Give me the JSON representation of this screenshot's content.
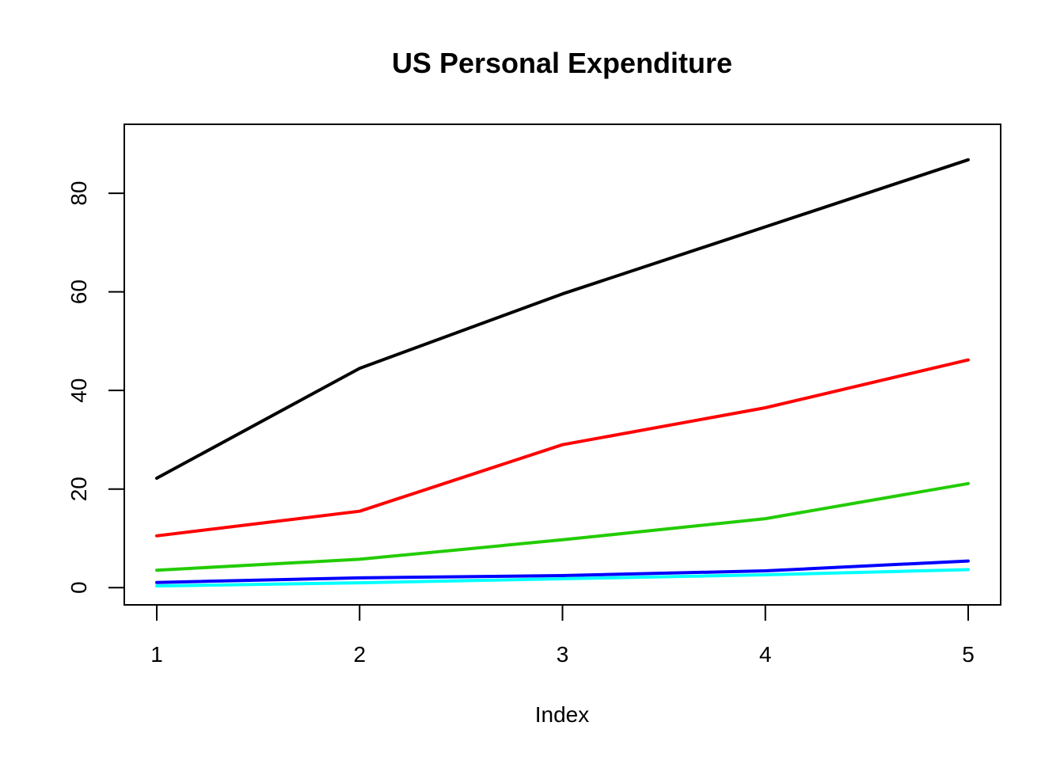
{
  "chart_data": {
    "type": "line",
    "title": "US Personal Expenditure",
    "xlabel": "Index",
    "ylabel": "",
    "x": [
      1,
      2,
      3,
      4,
      5
    ],
    "xlim": [
      0.84,
      5.16
    ],
    "ylim": [
      -3.5,
      94
    ],
    "x_ticks": [
      1,
      2,
      3,
      4,
      5
    ],
    "y_ticks": [
      0,
      20,
      40,
      60,
      80
    ],
    "grid": false,
    "legend": "none",
    "series": [
      {
        "color": "#000000",
        "values": [
          22.2,
          44.5,
          59.6,
          73.2,
          86.8
        ]
      },
      {
        "color": "#ff0000",
        "values": [
          10.5,
          15.5,
          29.0,
          36.5,
          46.2
        ]
      },
      {
        "color": "#22cc00",
        "values": [
          3.53,
          5.76,
          9.71,
          14.0,
          21.1
        ]
      },
      {
        "color": "#0000ff",
        "values": [
          1.04,
          1.98,
          2.45,
          3.4,
          5.4
        ]
      },
      {
        "color": "#00ffff",
        "values": [
          0.341,
          0.974,
          1.8,
          2.6,
          3.64
        ]
      }
    ]
  }
}
